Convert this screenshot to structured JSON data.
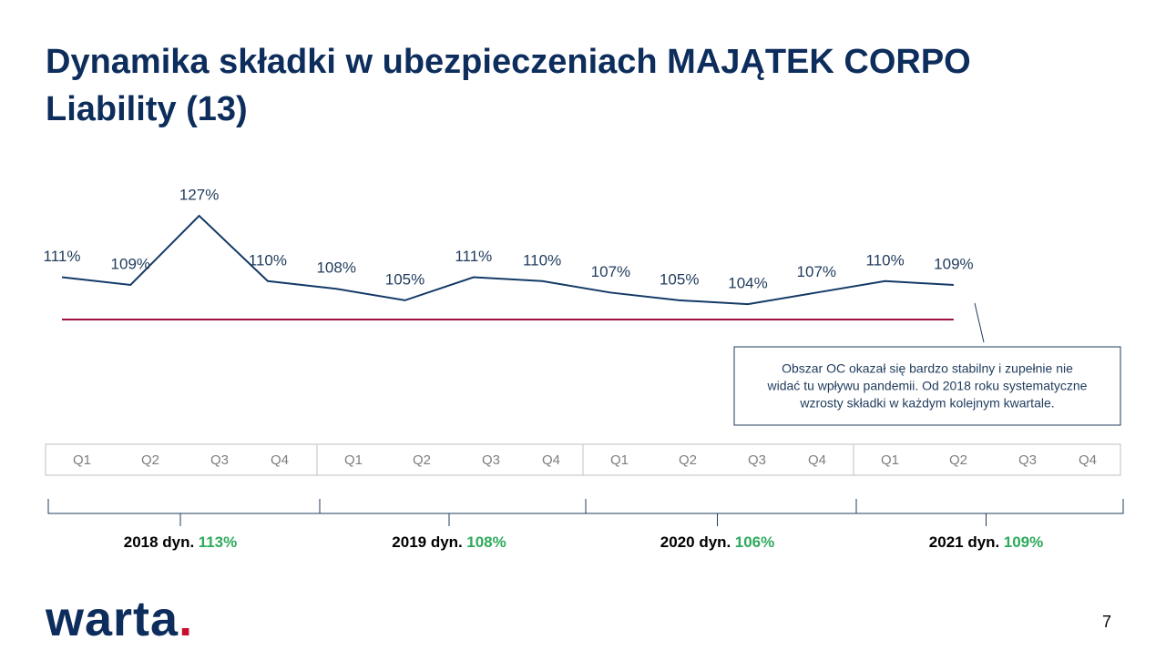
{
  "title_lines": [
    "Dynamika składki w ubezpieczeniach MAJĄTEK CORPO",
    "Liability (13)"
  ],
  "chart_data": {
    "type": "line",
    "categories": [
      "Q1",
      "Q2",
      "Q3",
      "Q4",
      "Q1",
      "Q2",
      "Q3",
      "Q4",
      "Q1",
      "Q2",
      "Q3",
      "Q4",
      "Q1",
      "Q2",
      "Q3",
      "Q4"
    ],
    "series": [
      {
        "color": "#143a66",
        "values": [
          111,
          109,
          127,
          110,
          108,
          105,
          111,
          110,
          107,
          105,
          104,
          107,
          110,
          109,
          null,
          null
        ],
        "value_labels": [
          "111%",
          "109%",
          "127%",
          "110%",
          "108%",
          "105%",
          "111%",
          "110%",
          "107%",
          "105%",
          "104%",
          "107%",
          "110%",
          "109%",
          null,
          null
        ]
      }
    ],
    "ylim": [
      100,
      127
    ],
    "reference_line": {
      "value": 100,
      "color": "#a0103c"
    },
    "annual": [
      {
        "label": "2018 dyn.",
        "value": 113,
        "value_label": "113%"
      },
      {
        "label": "2019 dyn.",
        "value": 108,
        "value_label": "108%"
      },
      {
        "label": "2020 dyn.",
        "value": 106,
        "value_label": "106%"
      },
      {
        "label": "2021 dyn.",
        "value": 109,
        "value_label": "109%"
      }
    ],
    "annotation": [
      "Obszar OC okazał się bardzo stabilny i zupełnie nie",
      "widać tu wpływu pandemii. Od 2018 roku systematyczne",
      "wzrosty składki w każdym kolejnym kwartale."
    ]
  },
  "logo": {
    "word": "warta",
    "dot": "."
  },
  "page_number": "7"
}
